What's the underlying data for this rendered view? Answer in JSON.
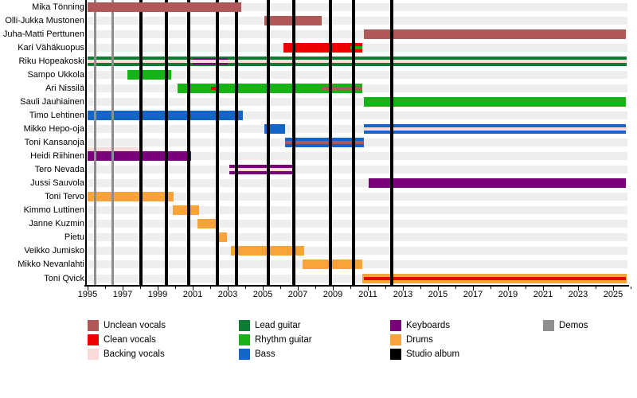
{
  "chart_data": {
    "type": "timeline",
    "description": "Band member history timeline (roles over years) with demo and studio album release markers",
    "x_axis": {
      "min": 1995,
      "max": 2026,
      "unit": "year",
      "label_interval_years": 2,
      "tick_labels": [
        "1995",
        "1997",
        "1999",
        "2001",
        "2003",
        "2005",
        "2007",
        "2009",
        "2011",
        "2013",
        "2015",
        "2017",
        "2019",
        "2021",
        "2023",
        "2025"
      ]
    },
    "roles": {
      "unclean_vocals": "#b05757",
      "clean_vocals": "#ee0000",
      "backing_vocals": "#f8dbd8",
      "lead_guitar": "#0e7d33",
      "rhythm_guitar": "#16b216",
      "bass": "#1366c8",
      "keyboards": "#7b007b",
      "drums": "#f9a33a",
      "studio_album": "#000000",
      "demos": "#8e8e8e"
    },
    "members": [
      {
        "name": "Mika Tönning",
        "segments": [
          {
            "role": "unclean_vocals",
            "from": 1995,
            "to": 2003.77,
            "kind": "full"
          }
        ]
      },
      {
        "name": "Olli-Jukka Mustonen",
        "segments": [
          {
            "role": "unclean_vocals",
            "from": 2005.08,
            "to": 2008.35,
            "kind": "full"
          }
        ]
      },
      {
        "name": "Juha-Matti Perttunen",
        "segments": [
          {
            "role": "unclean_vocals",
            "from": 2010.77,
            "to": 2025.75,
            "kind": "full"
          }
        ]
      },
      {
        "name": "Kari Vähäkuopus",
        "segments": [
          {
            "role": "clean_vocals",
            "from": 2006.2,
            "to": 2010.7,
            "kind": "full"
          },
          {
            "role": "rhythm_guitar",
            "from": 2010.0,
            "to": 2010.7,
            "kind": "stripe"
          }
        ]
      },
      {
        "name": "Riku Hopeakoski",
        "segments": [
          {
            "role": "lead_guitar",
            "from": 1995,
            "to": 2025.75,
            "kind": "full"
          },
          {
            "role": "keyboards",
            "from": 2001.0,
            "to": 2003.0,
            "kind": "mid"
          },
          {
            "role": "backing_vocals",
            "from": 1995,
            "to": 2025.75,
            "kind": "stripe"
          }
        ]
      },
      {
        "name": "Sampo Ukkola",
        "segments": [
          {
            "role": "rhythm_guitar",
            "from": 1997.25,
            "to": 1999.77,
            "kind": "full"
          }
        ]
      },
      {
        "name": "Ari Nissilä",
        "segments": [
          {
            "role": "rhythm_guitar",
            "from": 2000.12,
            "to": 2010.7,
            "kind": "full"
          },
          {
            "role": "clean_vocals",
            "from": 2002.05,
            "to": 2002.5,
            "kind": "stripe"
          },
          {
            "role": "unclean_vocals",
            "from": 2008.35,
            "to": 2010.7,
            "kind": "stripe"
          }
        ]
      },
      {
        "name": "Sauli Jauhiainen",
        "segments": [
          {
            "role": "rhythm_guitar",
            "from": 2010.77,
            "to": 2025.75,
            "kind": "full"
          }
        ]
      },
      {
        "name": "Timo Lehtinen",
        "segments": [
          {
            "role": "bass",
            "from": 1995,
            "to": 2003.86,
            "kind": "full"
          }
        ]
      },
      {
        "name": "Mikko Hepo-oja",
        "segments": [
          {
            "role": "bass",
            "from": 2005.08,
            "to": 2006.29,
            "kind": "full"
          },
          {
            "role": "bass",
            "from": 2010.77,
            "to": 2025.75,
            "kind": "full"
          },
          {
            "role": "backing_vocals",
            "from": 2010.77,
            "to": 2025.75,
            "kind": "stripe"
          }
        ]
      },
      {
        "name": "Toni Kansanoja",
        "segments": [
          {
            "role": "bass",
            "from": 2006.25,
            "to": 2010.75,
            "kind": "full"
          },
          {
            "role": "unclean_vocals",
            "from": 2006.25,
            "to": 2010.75,
            "kind": "stripe"
          }
        ]
      },
      {
        "name": "Heidi Riihinen",
        "segments": [
          {
            "role": "keyboards",
            "from": 1995,
            "to": 2000.9,
            "kind": "full"
          },
          {
            "role": "backing_vocals",
            "from": 1995,
            "to": 1998.05,
            "kind": "topstripe"
          }
        ]
      },
      {
        "name": "Tero Nevada",
        "segments": [
          {
            "role": "keyboards",
            "from": 2003.1,
            "to": 2006.75,
            "kind": "full"
          },
          {
            "role": "backing_vocals",
            "from": 2003.1,
            "to": 2006.75,
            "kind": "stripe"
          }
        ]
      },
      {
        "name": "Jussi Sauvola",
        "segments": [
          {
            "role": "keyboards",
            "from": 2011.05,
            "to": 2025.75,
            "kind": "full"
          }
        ]
      },
      {
        "name": "Toni Tervo",
        "segments": [
          {
            "role": "drums",
            "from": 1995,
            "to": 1999.9,
            "kind": "full"
          }
        ]
      },
      {
        "name": "Kimmo Luttinen",
        "segments": [
          {
            "role": "drums",
            "from": 1999.86,
            "to": 2001.36,
            "kind": "full"
          }
        ]
      },
      {
        "name": "Janne Kuzmin",
        "segments": [
          {
            "role": "drums",
            "from": 2001.27,
            "to": 2002.4,
            "kind": "full"
          }
        ]
      },
      {
        "name": "Pietu",
        "segments": [
          {
            "role": "drums",
            "from": 2002.4,
            "to": 2002.95,
            "kind": "full"
          }
        ]
      },
      {
        "name": "Veikko Jumisko",
        "segments": [
          {
            "role": "drums",
            "from": 2003.18,
            "to": 2007.35,
            "kind": "full"
          }
        ]
      },
      {
        "name": "Mikko Nevanlahti",
        "segments": [
          {
            "role": "drums",
            "from": 2007.27,
            "to": 2010.68,
            "kind": "full"
          }
        ]
      },
      {
        "name": "Toni Qvick",
        "segments": [
          {
            "role": "drums",
            "from": 2010.68,
            "to": 2025.75,
            "kind": "full"
          },
          {
            "role": "clean_vocals",
            "from": 2010.77,
            "to": 2025.75,
            "kind": "stripe"
          }
        ]
      }
    ],
    "events": {
      "demos": [
        1995.45,
        1996.45
      ],
      "studio_albums": [
        1998.05,
        1999.48,
        2000.77,
        2002.39,
        2003.52,
        2005.32,
        2006.75,
        2008.84,
        2010.16,
        2012.35
      ]
    },
    "legend": {
      "columns": [
        {
          "items": [
            {
              "label": "Unclean vocals",
              "role": "unclean_vocals"
            },
            {
              "label": "Clean vocals",
              "role": "clean_vocals"
            },
            {
              "label": "Backing vocals",
              "role": "backing_vocals"
            }
          ]
        },
        {
          "items": [
            {
              "label": "Lead guitar",
              "role": "lead_guitar"
            },
            {
              "label": "Rhythm guitar",
              "role": "rhythm_guitar"
            },
            {
              "label": "Bass",
              "role": "bass"
            }
          ]
        },
        {
          "items": [
            {
              "label": "Keyboards",
              "role": "keyboards"
            },
            {
              "label": "Drums",
              "role": "drums"
            },
            {
              "label": "Studio album",
              "role": "studio_album"
            }
          ]
        },
        {
          "items": [
            {
              "label": "Demos",
              "role": "demos"
            }
          ]
        }
      ]
    }
  }
}
